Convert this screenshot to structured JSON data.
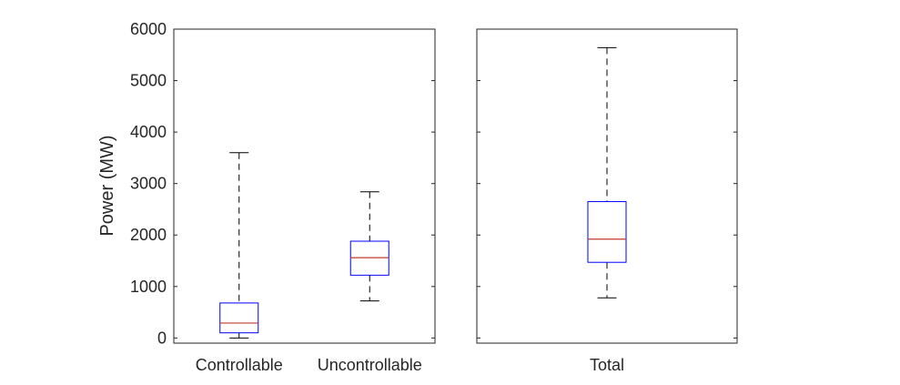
{
  "chart_data": [
    {
      "type": "box",
      "ylabel": "Power (MW)",
      "ylim": [
        -100,
        6000
      ],
      "yticks": [
        0,
        1000,
        2000,
        3000,
        4000,
        5000,
        6000
      ],
      "categories": [
        "Controllable",
        "Uncontrollable"
      ],
      "boxes": [
        {
          "category": "Controllable",
          "min": 0,
          "q1": 100,
          "median": 290,
          "q3": 680,
          "max": 3600
        },
        {
          "category": "Uncontrollable",
          "min": 720,
          "q1": 1220,
          "median": 1560,
          "q3": 1880,
          "max": 2840
        }
      ],
      "colors": {
        "box": "#0000ff",
        "median": "#c0392b",
        "whisker": "#000000"
      }
    },
    {
      "type": "box",
      "ylim": [
        -100,
        6000
      ],
      "categories": [
        "Total"
      ],
      "boxes": [
        {
          "category": "Total",
          "min": 780,
          "q1": 1470,
          "median": 1920,
          "q3": 2650,
          "max": 5640
        }
      ],
      "colors": {
        "box": "#0000ff",
        "median": "#c0392b",
        "whisker": "#000000"
      }
    }
  ]
}
